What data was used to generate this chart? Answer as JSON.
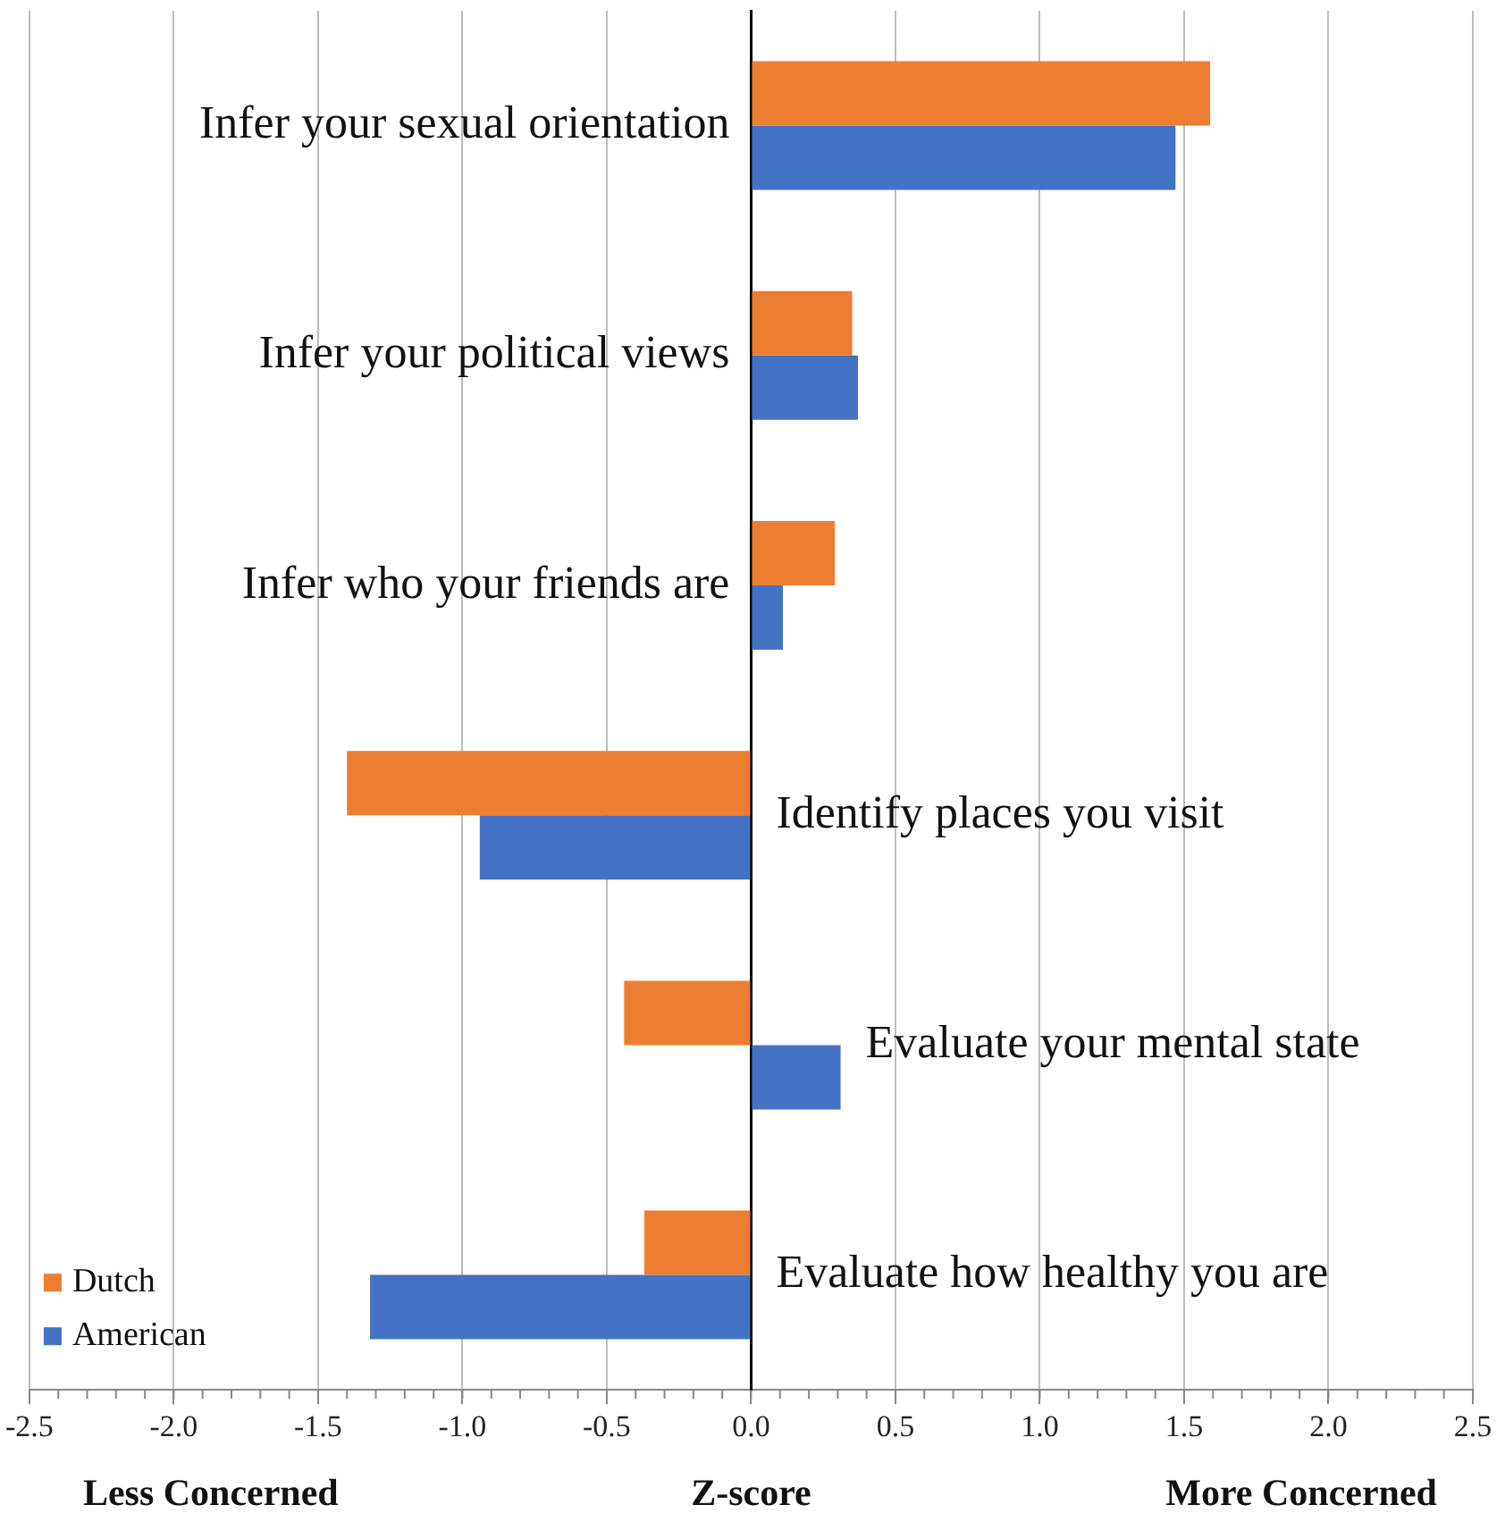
{
  "chart_data": {
    "type": "bar",
    "orientation": "horizontal",
    "categories": [
      "Infer your sexual orientation",
      "Infer your political views",
      "Infer who your friends are",
      "Identify places you visit",
      "Evaluate your mental state",
      "Evaluate how healthy you are"
    ],
    "series": [
      {
        "name": "Dutch",
        "color": "#ed7d31",
        "values": [
          1.59,
          0.35,
          0.29,
          -1.4,
          -0.44,
          -0.37
        ]
      },
      {
        "name": "American",
        "color": "#4472c4",
        "values": [
          1.47,
          0.37,
          0.11,
          -0.94,
          0.31,
          -1.32
        ]
      }
    ],
    "xlim": [
      -2.5,
      2.5
    ],
    "xticks": [
      {
        "value": -2.5,
        "label": "-2.5"
      },
      {
        "value": -2,
        "label": "-2.0"
      },
      {
        "value": -1.5,
        "label": "-1.5"
      },
      {
        "value": -1,
        "label": "-1.0"
      },
      {
        "value": -0.5,
        "label": "-0.5"
      },
      {
        "value": 0,
        "label": "0.0"
      },
      {
        "value": 0.5,
        "label": "0.5"
      },
      {
        "value": 1,
        "label": "1.0"
      },
      {
        "value": 1.5,
        "label": "1.5"
      },
      {
        "value": 2,
        "label": "2.0"
      },
      {
        "value": 2.5,
        "label": "2.5"
      }
    ],
    "xlabel": "Z-score",
    "annotations": [
      "Less Concerned",
      "More Concerned"
    ],
    "grid": "x",
    "legend": "bottom left"
  }
}
